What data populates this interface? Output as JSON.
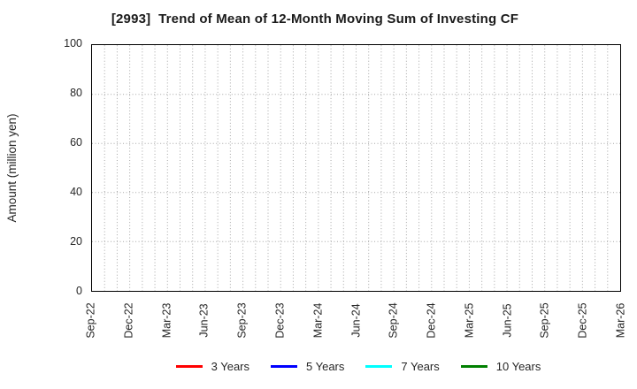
{
  "chart_data": {
    "type": "line",
    "title": "[2993]  Trend of Mean of 12-Month Moving Sum of Investing CF",
    "xlabel": "",
    "ylabel": "Amount (million yen)",
    "ylim": [
      0,
      100
    ],
    "yticks": [
      0,
      20,
      40,
      60,
      80,
      100
    ],
    "x_tick_labels": [
      "Sep-22",
      "Dec-22",
      "Mar-23",
      "Jun-23",
      "Sep-23",
      "Dec-23",
      "Mar-24",
      "Jun-24",
      "Sep-24",
      "Dec-24",
      "Mar-25",
      "Jun-25",
      "Sep-25",
      "Dec-25",
      "Mar-26"
    ],
    "months_span": 42,
    "grid": true,
    "grid_style": "dotted",
    "legend_position": "bottom",
    "series": [
      {
        "name": "3 Years",
        "color": "#ff0000",
        "values": []
      },
      {
        "name": "5 Years",
        "color": "#0000ff",
        "values": []
      },
      {
        "name": "7 Years",
        "color": "#00ffff",
        "values": []
      },
      {
        "name": "10 Years",
        "color": "#008000",
        "values": []
      }
    ]
  },
  "colors": {
    "frame": "#000000",
    "grid": "#a6a6a6",
    "text": "#262626"
  }
}
